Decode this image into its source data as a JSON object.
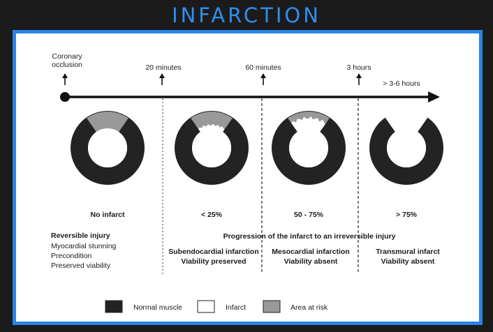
{
  "title": "INFARCTION",
  "timeline": {
    "start_label": [
      "Coronary",
      "occlusion"
    ],
    "markers": [
      "20 minutes",
      "60 minutes",
      "3 hours",
      "> 3-6 hours"
    ]
  },
  "stages": [
    {
      "extent": "No infarct",
      "description": [],
      "infarct_fraction": 0
    },
    {
      "extent": "< 25%",
      "description": [
        "Subendocardial infarction",
        "Viability preserved"
      ],
      "infarct_fraction": 0.2
    },
    {
      "extent": "50 - 75%",
      "description": [
        "Mesocardial infarction",
        "Viability absent"
      ],
      "infarct_fraction": 0.6
    },
    {
      "extent": "> 75%",
      "description": [
        "Transmural infarct",
        "Viability absent"
      ],
      "infarct_fraction": 1
    }
  ],
  "reversible": {
    "heading": "Reversible injury",
    "items": [
      "Myocardial stunning",
      "Precondition",
      "Preserved viability"
    ]
  },
  "progression_text": "Progression of the infarct to an irreversible injury",
  "legend": [
    {
      "label": "Normal muscle",
      "color": "#232323"
    },
    {
      "label": "Infarct",
      "color": "#ffffff"
    },
    {
      "label": "Area at risk",
      "color": "#999999"
    }
  ],
  "colors": {
    "title": "#2f8ff0",
    "frame": "#2a85e6",
    "muscle": "#232323",
    "risk": "#999999",
    "infarct": "#ffffff"
  }
}
